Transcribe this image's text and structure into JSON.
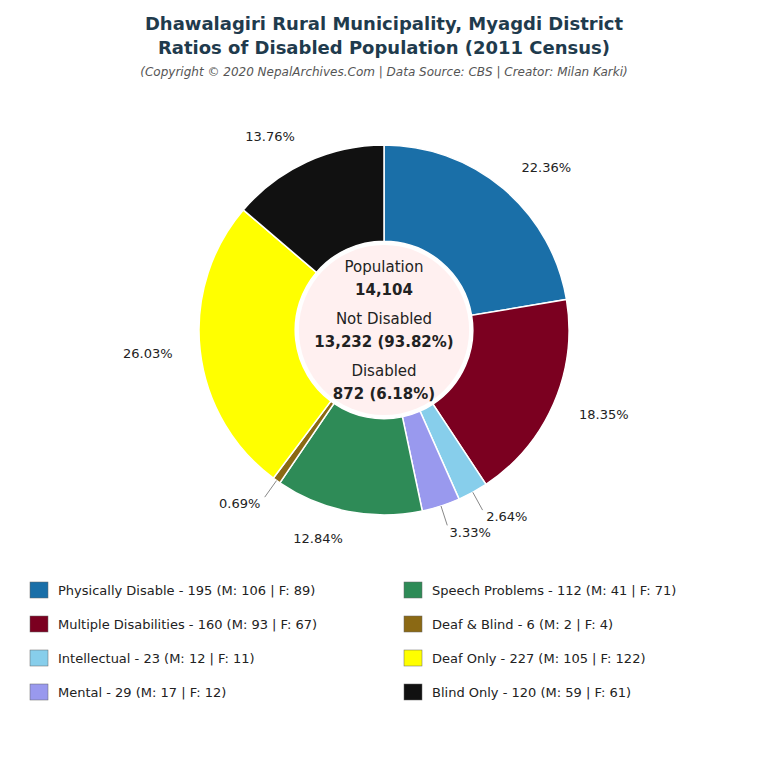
{
  "chart_data": {
    "type": "donut",
    "title": [
      "Dhawalagiri Rural Municipality, Myagdi District",
      "Ratios of Disabled Population (2011 Census)"
    ],
    "subtitle": "(Copyright © 2020 NepalArchives.Com | Data Source: CBS | Creator: Milan Karki)",
    "categories": [
      "Physically Disable - 195 (M: 106 | F: 89)",
      "Multiple Disabilities - 160 (M: 93 | F: 67)",
      "Intellectual - 23 (M: 12 | F: 11)",
      "Mental - 29 (M: 17 | F: 12)",
      "Speech Problems - 112 (M: 41 | F: 71)",
      "Deaf & Blind - 6 (M: 2 | F: 4)",
      "Deaf Only - 227 (M: 105 | F: 122)",
      "Blind Only - 120 (M: 59 | F: 61)"
    ],
    "values": [
      22.36,
      18.35,
      2.64,
      3.33,
      12.84,
      0.69,
      26.03,
      13.76
    ],
    "value_labels": [
      "22.36%",
      "18.35%",
      "2.64%",
      "3.33%",
      "12.84%",
      "0.69%",
      "26.03%",
      "13.76%"
    ],
    "colors": [
      "#1a6fa8",
      "#7b0020",
      "#87ceeb",
      "#9999ee",
      "#2e8b57",
      "#8b6914",
      "#ffff00",
      "#111111"
    ],
    "data_labels": true,
    "legend": "bottom",
    "annotations": [
      "Population",
      "14,104",
      "Not Disabled",
      "13,232 (93.82%)",
      "Disabled",
      "872 (6.18%)"
    ]
  }
}
